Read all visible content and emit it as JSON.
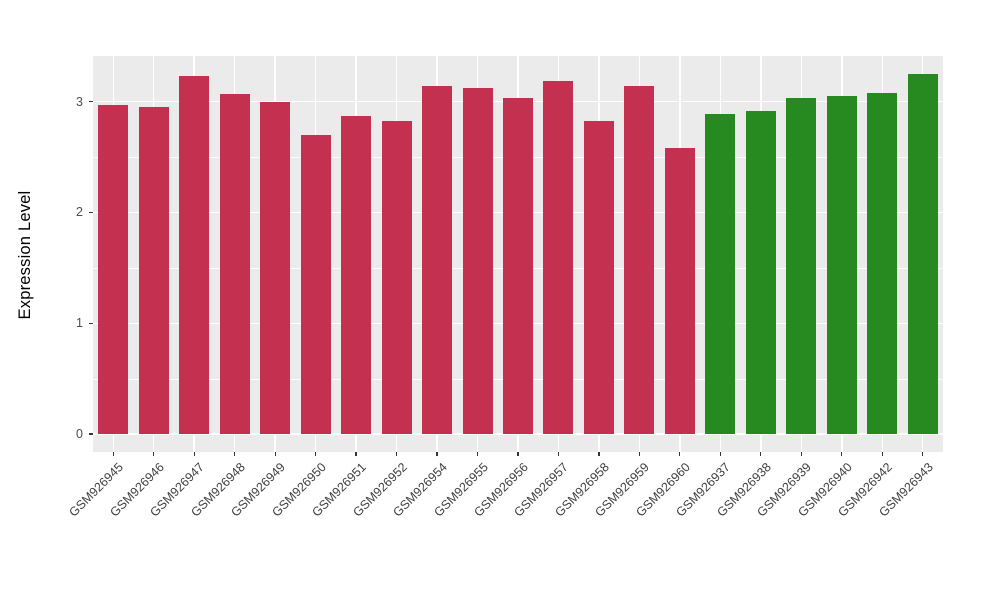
{
  "chart_data": {
    "type": "bar",
    "title": "",
    "xlabel": "",
    "ylabel": "Expression Level",
    "yticks": [
      0,
      1,
      2,
      3
    ],
    "ylim": [
      0,
      3.41
    ],
    "grid": true,
    "legend": false,
    "categories": [
      "GSM926945",
      "GSM926946",
      "GSM926947",
      "GSM926948",
      "GSM926949",
      "GSM926950",
      "GSM926951",
      "GSM926952",
      "GSM926954",
      "GSM926955",
      "GSM926956",
      "GSM926957",
      "GSM926958",
      "GSM926959",
      "GSM926960",
      "GSM926937",
      "GSM926938",
      "GSM926939",
      "GSM926940",
      "GSM926942",
      "GSM926943"
    ],
    "values": [
      2.97,
      2.95,
      3.23,
      3.07,
      3.0,
      2.7,
      2.87,
      2.83,
      3.14,
      3.12,
      3.03,
      3.19,
      2.83,
      3.14,
      2.58,
      2.89,
      2.92,
      3.03,
      3.05,
      3.08,
      3.25
    ],
    "bar_groups": [
      "red",
      "red",
      "red",
      "red",
      "red",
      "red",
      "red",
      "red",
      "red",
      "red",
      "red",
      "red",
      "red",
      "red",
      "red",
      "green",
      "green",
      "green",
      "green",
      "green",
      "green"
    ],
    "group_colors": {
      "red": "#C4304F",
      "green": "#278A21"
    },
    "panel_bg": "#EBEBEB",
    "grid_color": "#FFFFFF",
    "axis_text_color": "#4D4D4D",
    "axis_title_color": "#000000"
  }
}
